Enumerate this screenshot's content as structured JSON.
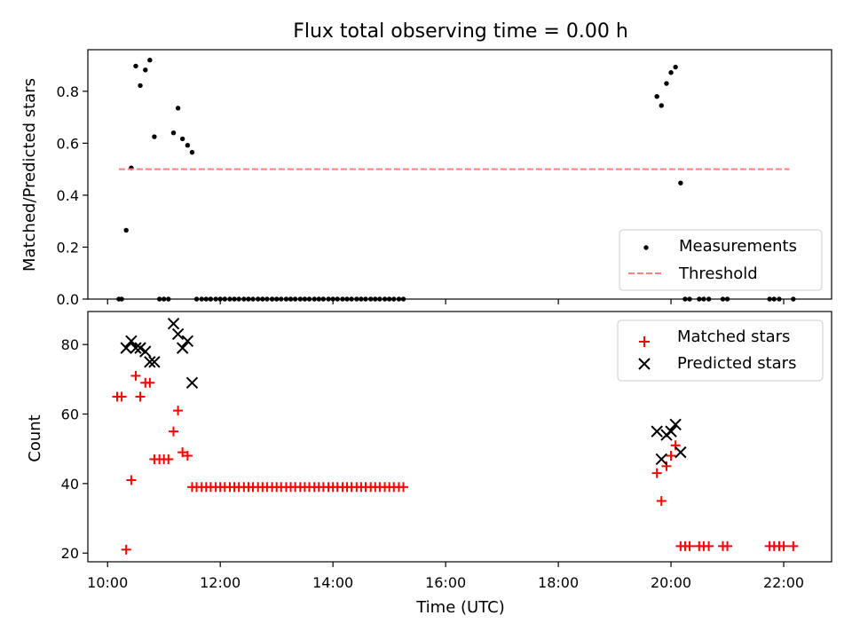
{
  "chart_data": [
    {
      "type": "scatter",
      "panel": "top",
      "title": "Flux total observing time = 0.00 h",
      "ylabel": "Matched/Predicted stars",
      "xlim": [
        9.65,
        22.85
      ],
      "ylim": [
        0,
        0.96
      ],
      "yticks": [
        0.0,
        0.2,
        0.4,
        0.6,
        0.8
      ],
      "ytick_labels": [
        "0.0",
        "0.2",
        "0.4",
        "0.6",
        "0.8"
      ],
      "xticks": [
        10,
        12,
        14,
        16,
        18,
        20,
        22
      ],
      "grid": false,
      "legend": {
        "placement": "lower-right",
        "entries": [
          "Measurements",
          "Threshold"
        ]
      },
      "series": [
        {
          "name": "Measurements",
          "color": "#000000",
          "marker": "dot",
          "points": [
            [
              10.2,
              0.0
            ],
            [
              10.25,
              0.0
            ],
            [
              10.33,
              0.265
            ],
            [
              10.42,
              0.505
            ],
            [
              10.5,
              0.897
            ],
            [
              10.58,
              0.822
            ],
            [
              10.67,
              0.882
            ],
            [
              10.75,
              0.92
            ],
            [
              10.83,
              0.625
            ],
            [
              10.92,
              0.0
            ],
            [
              11.0,
              0.0
            ],
            [
              11.08,
              0.0
            ],
            [
              11.17,
              0.64
            ],
            [
              11.25,
              0.735
            ],
            [
              11.33,
              0.617
            ],
            [
              11.42,
              0.592
            ],
            [
              11.5,
              0.565
            ],
            [
              11.58,
              0.0
            ],
            [
              11.67,
              0.0
            ],
            [
              11.75,
              0.0
            ],
            [
              11.83,
              0.0
            ],
            [
              11.92,
              0.0
            ],
            [
              12.0,
              0.0
            ],
            [
              12.08,
              0.0
            ],
            [
              12.17,
              0.0
            ],
            [
              12.25,
              0.0
            ],
            [
              12.33,
              0.0
            ],
            [
              12.42,
              0.0
            ],
            [
              12.5,
              0.0
            ],
            [
              12.58,
              0.0
            ],
            [
              12.67,
              0.0
            ],
            [
              12.75,
              0.0
            ],
            [
              12.83,
              0.0
            ],
            [
              12.92,
              0.0
            ],
            [
              13.0,
              0.0
            ],
            [
              13.08,
              0.0
            ],
            [
              13.17,
              0.0
            ],
            [
              13.25,
              0.0
            ],
            [
              13.33,
              0.0
            ],
            [
              13.42,
              0.0
            ],
            [
              13.5,
              0.0
            ],
            [
              13.58,
              0.0
            ],
            [
              13.67,
              0.0
            ],
            [
              13.75,
              0.0
            ],
            [
              13.83,
              0.0
            ],
            [
              13.92,
              0.0
            ],
            [
              14.0,
              0.0
            ],
            [
              14.08,
              0.0
            ],
            [
              14.17,
              0.0
            ],
            [
              14.25,
              0.0
            ],
            [
              14.33,
              0.0
            ],
            [
              14.42,
              0.0
            ],
            [
              14.5,
              0.0
            ],
            [
              14.58,
              0.0
            ],
            [
              14.67,
              0.0
            ],
            [
              14.75,
              0.0
            ],
            [
              14.83,
              0.0
            ],
            [
              14.92,
              0.0
            ],
            [
              15.0,
              0.0
            ],
            [
              15.08,
              0.0
            ],
            [
              15.17,
              0.0
            ],
            [
              15.25,
              0.0
            ],
            [
              19.75,
              0.78
            ],
            [
              19.83,
              0.745
            ],
            [
              19.92,
              0.83
            ],
            [
              20.0,
              0.872
            ],
            [
              20.08,
              0.893
            ],
            [
              20.17,
              0.447
            ],
            [
              20.25,
              0.0
            ],
            [
              20.33,
              0.0
            ],
            [
              20.5,
              0.0
            ],
            [
              20.58,
              0.0
            ],
            [
              20.67,
              0.0
            ],
            [
              20.92,
              0.0
            ],
            [
              21.0,
              0.0
            ],
            [
              21.75,
              0.0
            ],
            [
              21.83,
              0.0
            ],
            [
              21.92,
              0.0
            ],
            [
              22.17,
              0.0
            ]
          ]
        },
        {
          "name": "Threshold",
          "color": "#ff7f7f",
          "style": "dashed",
          "points": [
            [
              10.2,
              0.5
            ],
            [
              22.1,
              0.5
            ]
          ]
        }
      ]
    },
    {
      "type": "scatter",
      "panel": "bottom",
      "xlabel": "Time (UTC)",
      "ylabel": "Count",
      "xlim": [
        9.65,
        22.85
      ],
      "ylim": [
        17.5,
        89.5
      ],
      "yticks": [
        20,
        40,
        60,
        80
      ],
      "ytick_labels": [
        "20",
        "40",
        "60",
        "80"
      ],
      "xticks": [
        10,
        12,
        14,
        16,
        18,
        20,
        22
      ],
      "xtick_labels": [
        "10:00",
        "12:00",
        "14:00",
        "16:00",
        "18:00",
        "20:00",
        "22:00"
      ],
      "grid": false,
      "legend": {
        "placement": "upper-right",
        "entries": [
          "Matched stars",
          "Predicted stars"
        ]
      },
      "series": [
        {
          "name": "Matched stars",
          "color": "#ff0000",
          "marker": "plus",
          "points": [
            [
              10.17,
              65
            ],
            [
              10.25,
              65
            ],
            [
              10.33,
              21
            ],
            [
              10.42,
              41
            ],
            [
              10.5,
              71
            ],
            [
              10.58,
              65
            ],
            [
              10.67,
              69
            ],
            [
              10.75,
              69
            ],
            [
              10.83,
              47
            ],
            [
              10.92,
              47
            ],
            [
              11.0,
              47
            ],
            [
              11.08,
              47
            ],
            [
              11.17,
              55
            ],
            [
              11.25,
              61
            ],
            [
              11.33,
              49
            ],
            [
              11.42,
              48
            ],
            [
              11.5,
              39
            ],
            [
              11.58,
              39
            ],
            [
              11.67,
              39
            ],
            [
              11.75,
              39
            ],
            [
              11.83,
              39
            ],
            [
              11.92,
              39
            ],
            [
              12.0,
              39
            ],
            [
              12.08,
              39
            ],
            [
              12.17,
              39
            ],
            [
              12.25,
              39
            ],
            [
              12.33,
              39
            ],
            [
              12.42,
              39
            ],
            [
              12.5,
              39
            ],
            [
              12.58,
              39
            ],
            [
              12.67,
              39
            ],
            [
              12.75,
              39
            ],
            [
              12.83,
              39
            ],
            [
              12.92,
              39
            ],
            [
              13.0,
              39
            ],
            [
              13.08,
              39
            ],
            [
              13.17,
              39
            ],
            [
              13.25,
              39
            ],
            [
              13.33,
              39
            ],
            [
              13.42,
              39
            ],
            [
              13.5,
              39
            ],
            [
              13.58,
              39
            ],
            [
              13.67,
              39
            ],
            [
              13.75,
              39
            ],
            [
              13.83,
              39
            ],
            [
              13.92,
              39
            ],
            [
              14.0,
              39
            ],
            [
              14.08,
              39
            ],
            [
              14.17,
              39
            ],
            [
              14.25,
              39
            ],
            [
              14.33,
              39
            ],
            [
              14.42,
              39
            ],
            [
              14.5,
              39
            ],
            [
              14.58,
              39
            ],
            [
              14.67,
              39
            ],
            [
              14.75,
              39
            ],
            [
              14.83,
              39
            ],
            [
              14.92,
              39
            ],
            [
              15.0,
              39
            ],
            [
              15.08,
              39
            ],
            [
              15.17,
              39
            ],
            [
              15.25,
              39
            ],
            [
              19.75,
              43
            ],
            [
              19.83,
              35
            ],
            [
              19.92,
              45
            ],
            [
              20.0,
              48
            ],
            [
              20.08,
              51
            ],
            [
              20.17,
              22
            ],
            [
              20.25,
              22
            ],
            [
              20.33,
              22
            ],
            [
              20.5,
              22
            ],
            [
              20.58,
              22
            ],
            [
              20.67,
              22
            ],
            [
              20.92,
              22
            ],
            [
              21.0,
              22
            ],
            [
              21.75,
              22
            ],
            [
              21.83,
              22
            ],
            [
              21.92,
              22
            ],
            [
              22.0,
              22
            ],
            [
              22.17,
              22
            ]
          ]
        },
        {
          "name": "Predicted stars",
          "color": "#000000",
          "marker": "x",
          "points": [
            [
              10.33,
              79
            ],
            [
              10.42,
              81
            ],
            [
              10.5,
              79
            ],
            [
              10.58,
              79
            ],
            [
              10.67,
              78
            ],
            [
              10.75,
              75
            ],
            [
              10.83,
              75
            ],
            [
              11.17,
              86
            ],
            [
              11.25,
              83
            ],
            [
              11.33,
              79
            ],
            [
              11.42,
              81
            ],
            [
              11.5,
              69
            ],
            [
              19.75,
              55
            ],
            [
              19.83,
              47
            ],
            [
              19.92,
              54
            ],
            [
              20.0,
              55
            ],
            [
              20.08,
              57
            ],
            [
              20.17,
              49
            ]
          ]
        }
      ]
    }
  ]
}
